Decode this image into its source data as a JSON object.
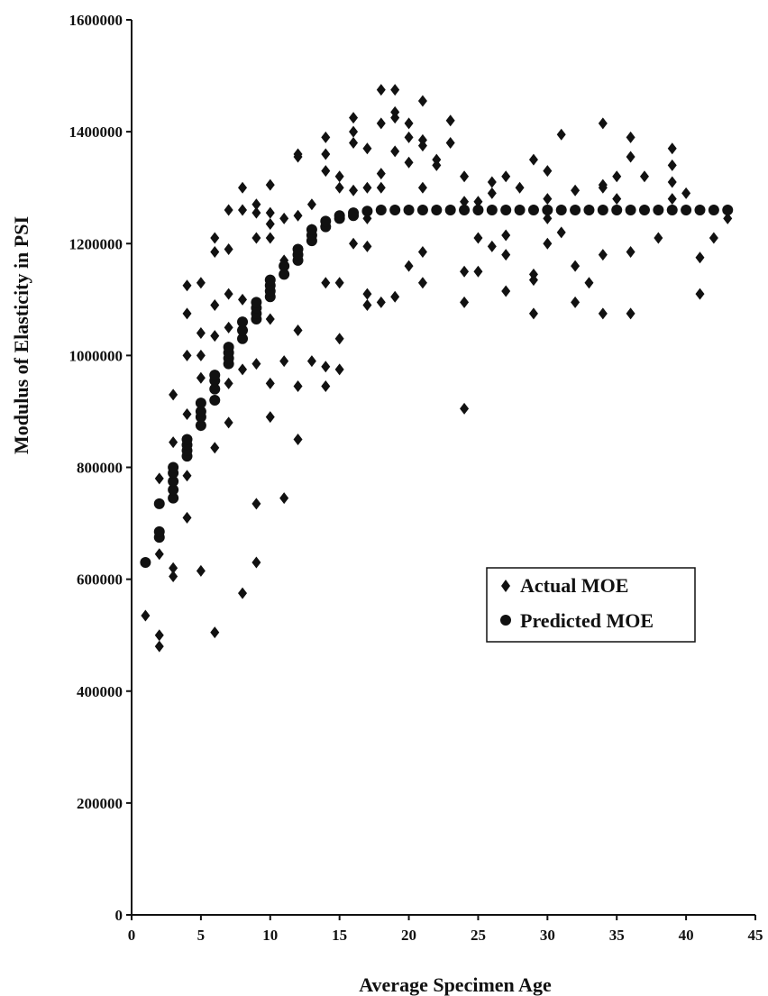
{
  "chart_data": {
    "type": "scatter",
    "title": "",
    "xlabel": "Average Specimen Age",
    "ylabel": "Modulus of Elasticity in PSI",
    "xlim": [
      0,
      45
    ],
    "ylim": [
      0,
      1600000
    ],
    "xticks": [
      "0",
      "5",
      "10",
      "15",
      "20",
      "25",
      "30",
      "35",
      "40",
      "45"
    ],
    "yticks": [
      "0",
      "200000",
      "400000",
      "600000",
      "800000",
      "1000000",
      "1200000",
      "1400000",
      "1600000"
    ],
    "grid": false,
    "legend": {
      "placement": "center-right",
      "entries": [
        "Actual MOE",
        "Predicted MOE"
      ]
    },
    "series": [
      {
        "name": "Actual MOE",
        "marker": "diamond",
        "color": "#111111",
        "points": [
          [
            1,
            535000
          ],
          [
            2,
            500000
          ],
          [
            2,
            480000
          ],
          [
            2,
            645000
          ],
          [
            2,
            780000
          ],
          [
            3,
            620000
          ],
          [
            3,
            605000
          ],
          [
            3,
            845000
          ],
          [
            3,
            930000
          ],
          [
            3,
            750000
          ],
          [
            4,
            710000
          ],
          [
            4,
            785000
          ],
          [
            4,
            895000
          ],
          [
            4,
            1000000
          ],
          [
            4,
            1075000
          ],
          [
            4,
            1125000
          ],
          [
            5,
            615000
          ],
          [
            5,
            875000
          ],
          [
            5,
            960000
          ],
          [
            5,
            1000000
          ],
          [
            5,
            1040000
          ],
          [
            5,
            1130000
          ],
          [
            6,
            505000
          ],
          [
            6,
            835000
          ],
          [
            6,
            1035000
          ],
          [
            6,
            1090000
          ],
          [
            6,
            1185000
          ],
          [
            6,
            1210000
          ],
          [
            7,
            880000
          ],
          [
            7,
            950000
          ],
          [
            7,
            1050000
          ],
          [
            7,
            1110000
          ],
          [
            7,
            1190000
          ],
          [
            7,
            1260000
          ],
          [
            8,
            575000
          ],
          [
            8,
            975000
          ],
          [
            8,
            1100000
          ],
          [
            8,
            1260000
          ],
          [
            8,
            1300000
          ],
          [
            9,
            630000
          ],
          [
            9,
            735000
          ],
          [
            9,
            985000
          ],
          [
            9,
            1210000
          ],
          [
            9,
            1255000
          ],
          [
            9,
            1270000
          ],
          [
            10,
            890000
          ],
          [
            10,
            950000
          ],
          [
            10,
            1065000
          ],
          [
            10,
            1210000
          ],
          [
            10,
            1235000
          ],
          [
            10,
            1255000
          ],
          [
            10,
            1305000
          ],
          [
            11,
            745000
          ],
          [
            11,
            990000
          ],
          [
            11,
            1170000
          ],
          [
            11,
            1245000
          ],
          [
            12,
            850000
          ],
          [
            12,
            945000
          ],
          [
            12,
            1045000
          ],
          [
            12,
            1250000
          ],
          [
            12,
            1355000
          ],
          [
            12,
            1360000
          ],
          [
            13,
            990000
          ],
          [
            13,
            1225000
          ],
          [
            13,
            1270000
          ],
          [
            14,
            945000
          ],
          [
            14,
            980000
          ],
          [
            14,
            1130000
          ],
          [
            14,
            1330000
          ],
          [
            14,
            1360000
          ],
          [
            14,
            1390000
          ],
          [
            15,
            975000
          ],
          [
            15,
            1030000
          ],
          [
            15,
            1130000
          ],
          [
            15,
            1300000
          ],
          [
            15,
            1320000
          ],
          [
            16,
            1200000
          ],
          [
            16,
            1295000
          ],
          [
            16,
            1380000
          ],
          [
            16,
            1400000
          ],
          [
            16,
            1425000
          ],
          [
            17,
            1090000
          ],
          [
            17,
            1110000
          ],
          [
            17,
            1195000
          ],
          [
            17,
            1245000
          ],
          [
            17,
            1300000
          ],
          [
            17,
            1370000
          ],
          [
            18,
            1095000
          ],
          [
            18,
            1300000
          ],
          [
            18,
            1325000
          ],
          [
            18,
            1415000
          ],
          [
            18,
            1475000
          ],
          [
            19,
            1105000
          ],
          [
            19,
            1365000
          ],
          [
            19,
            1425000
          ],
          [
            19,
            1435000
          ],
          [
            19,
            1475000
          ],
          [
            20,
            1160000
          ],
          [
            20,
            1345000
          ],
          [
            20,
            1390000
          ],
          [
            20,
            1415000
          ],
          [
            21,
            1130000
          ],
          [
            21,
            1185000
          ],
          [
            21,
            1300000
          ],
          [
            21,
            1375000
          ],
          [
            21,
            1385000
          ],
          [
            21,
            1455000
          ],
          [
            22,
            1340000
          ],
          [
            22,
            1350000
          ],
          [
            23,
            1380000
          ],
          [
            23,
            1420000
          ],
          [
            24,
            905000
          ],
          [
            24,
            1095000
          ],
          [
            24,
            1150000
          ],
          [
            24,
            1275000
          ],
          [
            24,
            1320000
          ],
          [
            25,
            1150000
          ],
          [
            25,
            1210000
          ],
          [
            25,
            1275000
          ],
          [
            26,
            1195000
          ],
          [
            26,
            1290000
          ],
          [
            26,
            1310000
          ],
          [
            27,
            1115000
          ],
          [
            27,
            1180000
          ],
          [
            27,
            1215000
          ],
          [
            27,
            1320000
          ],
          [
            28,
            1300000
          ],
          [
            29,
            1075000
          ],
          [
            29,
            1135000
          ],
          [
            29,
            1145000
          ],
          [
            29,
            1350000
          ],
          [
            30,
            1200000
          ],
          [
            30,
            1245000
          ],
          [
            30,
            1280000
          ],
          [
            30,
            1330000
          ],
          [
            31,
            1220000
          ],
          [
            31,
            1395000
          ],
          [
            32,
            1095000
          ],
          [
            32,
            1160000
          ],
          [
            32,
            1295000
          ],
          [
            33,
            1130000
          ],
          [
            34,
            1075000
          ],
          [
            34,
            1180000
          ],
          [
            34,
            1300000
          ],
          [
            34,
            1305000
          ],
          [
            34,
            1415000
          ],
          [
            35,
            1280000
          ],
          [
            35,
            1320000
          ],
          [
            36,
            1075000
          ],
          [
            36,
            1185000
          ],
          [
            36,
            1355000
          ],
          [
            36,
            1390000
          ],
          [
            37,
            1320000
          ],
          [
            38,
            1210000
          ],
          [
            39,
            1280000
          ],
          [
            39,
            1310000
          ],
          [
            39,
            1340000
          ],
          [
            39,
            1370000
          ],
          [
            40,
            1290000
          ],
          [
            41,
            1110000
          ],
          [
            41,
            1175000
          ],
          [
            42,
            1210000
          ],
          [
            43,
            1245000
          ]
        ]
      },
      {
        "name": "Predicted MOE",
        "marker": "circle",
        "color": "#111111",
        "points": [
          [
            1,
            630000
          ],
          [
            2,
            675000
          ],
          [
            2,
            685000
          ],
          [
            2,
            735000
          ],
          [
            3,
            745000
          ],
          [
            3,
            760000
          ],
          [
            3,
            775000
          ],
          [
            3,
            790000
          ],
          [
            3,
            800000
          ],
          [
            4,
            820000
          ],
          [
            4,
            830000
          ],
          [
            4,
            840000
          ],
          [
            4,
            850000
          ],
          [
            5,
            875000
          ],
          [
            5,
            890000
          ],
          [
            5,
            900000
          ],
          [
            5,
            915000
          ],
          [
            6,
            920000
          ],
          [
            6,
            940000
          ],
          [
            6,
            955000
          ],
          [
            6,
            965000
          ],
          [
            7,
            985000
          ],
          [
            7,
            995000
          ],
          [
            7,
            1005000
          ],
          [
            7,
            1015000
          ],
          [
            8,
            1030000
          ],
          [
            8,
            1045000
          ],
          [
            8,
            1060000
          ],
          [
            9,
            1065000
          ],
          [
            9,
            1075000
          ],
          [
            9,
            1085000
          ],
          [
            9,
            1095000
          ],
          [
            10,
            1105000
          ],
          [
            10,
            1115000
          ],
          [
            10,
            1125000
          ],
          [
            10,
            1135000
          ],
          [
            11,
            1145000
          ],
          [
            11,
            1160000
          ],
          [
            12,
            1170000
          ],
          [
            12,
            1180000
          ],
          [
            12,
            1190000
          ],
          [
            13,
            1205000
          ],
          [
            13,
            1215000
          ],
          [
            13,
            1225000
          ],
          [
            14,
            1230000
          ],
          [
            14,
            1240000
          ],
          [
            15,
            1245000
          ],
          [
            15,
            1250000
          ],
          [
            16,
            1250000
          ],
          [
            16,
            1255000
          ],
          [
            17,
            1258000
          ],
          [
            18,
            1260000
          ],
          [
            19,
            1260000
          ],
          [
            20,
            1260000
          ],
          [
            21,
            1260000
          ],
          [
            22,
            1260000
          ],
          [
            23,
            1260000
          ],
          [
            24,
            1260000
          ],
          [
            25,
            1260000
          ],
          [
            26,
            1260000
          ],
          [
            27,
            1260000
          ],
          [
            28,
            1260000
          ],
          [
            29,
            1260000
          ],
          [
            30,
            1260000
          ],
          [
            31,
            1260000
          ],
          [
            32,
            1260000
          ],
          [
            33,
            1260000
          ],
          [
            34,
            1260000
          ],
          [
            35,
            1260000
          ],
          [
            36,
            1260000
          ],
          [
            37,
            1260000
          ],
          [
            38,
            1260000
          ],
          [
            39,
            1260000
          ],
          [
            40,
            1260000
          ],
          [
            41,
            1260000
          ],
          [
            42,
            1260000
          ],
          [
            43,
            1260000
          ]
        ]
      }
    ]
  }
}
